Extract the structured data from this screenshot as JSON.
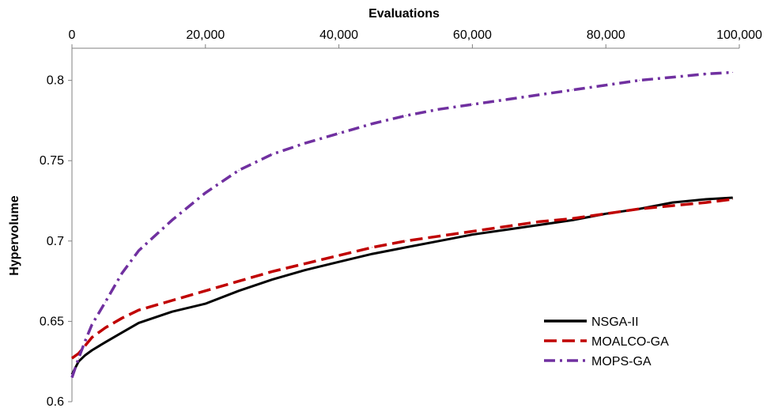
{
  "chart_data": {
    "type": "line",
    "title": "",
    "xlabel": "Evaluations",
    "ylabel": "Hypervolume",
    "xlim": [
      0,
      100000
    ],
    "ylim": [
      0.6,
      0.82
    ],
    "x_ticks": [
      0,
      20000,
      40000,
      60000,
      80000,
      100000
    ],
    "x_tick_labels": [
      "0",
      "20,000",
      "40,000",
      "60,000",
      "80,000",
      "100,000"
    ],
    "y_ticks": [
      0.6,
      0.65,
      0.7,
      0.75,
      0.8
    ],
    "y_tick_labels": [
      "0.6",
      "0.65",
      "0.7",
      "0.75",
      "0.8"
    ],
    "x_axis_position": "top",
    "grid": false,
    "legend_position": "bottom-right",
    "series": [
      {
        "name": "NSGA-II",
        "color": "#000000",
        "dash": "solid",
        "x": [
          0,
          1000,
          2000,
          3000,
          5000,
          7500,
          10000,
          15000,
          20000,
          25000,
          30000,
          35000,
          40000,
          45000,
          50000,
          55000,
          60000,
          65000,
          70000,
          75000,
          80000,
          85000,
          90000,
          95000,
          99000
        ],
        "y": [
          0.617,
          0.625,
          0.629,
          0.632,
          0.637,
          0.643,
          0.649,
          0.656,
          0.661,
          0.669,
          0.676,
          0.682,
          0.687,
          0.692,
          0.696,
          0.7,
          0.704,
          0.707,
          0.71,
          0.713,
          0.717,
          0.72,
          0.724,
          0.726,
          0.727
        ]
      },
      {
        "name": "MOALCO-GA",
        "color": "#c00000",
        "dash": "dashed",
        "x": [
          0,
          1000,
          2000,
          3000,
          5000,
          7500,
          10000,
          15000,
          20000,
          25000,
          30000,
          35000,
          40000,
          45000,
          50000,
          55000,
          60000,
          65000,
          70000,
          75000,
          80000,
          85000,
          90000,
          95000,
          99000
        ],
        "y": [
          0.627,
          0.63,
          0.635,
          0.64,
          0.646,
          0.652,
          0.657,
          0.663,
          0.669,
          0.675,
          0.681,
          0.686,
          0.691,
          0.696,
          0.7,
          0.703,
          0.706,
          0.709,
          0.712,
          0.714,
          0.717,
          0.72,
          0.722,
          0.724,
          0.726
        ]
      },
      {
        "name": "MOPS-GA",
        "color": "#7030a0",
        "dash": "dash-dot",
        "x": [
          0,
          1000,
          2000,
          3000,
          5000,
          7500,
          10000,
          15000,
          20000,
          25000,
          30000,
          35000,
          40000,
          45000,
          50000,
          55000,
          60000,
          65000,
          70000,
          75000,
          80000,
          85000,
          90000,
          95000,
          99000
        ],
        "y": [
          0.615,
          0.627,
          0.638,
          0.648,
          0.662,
          0.68,
          0.694,
          0.713,
          0.73,
          0.744,
          0.754,
          0.761,
          0.767,
          0.773,
          0.778,
          0.782,
          0.785,
          0.788,
          0.791,
          0.794,
          0.797,
          0.8,
          0.802,
          0.804,
          0.805
        ]
      }
    ]
  }
}
